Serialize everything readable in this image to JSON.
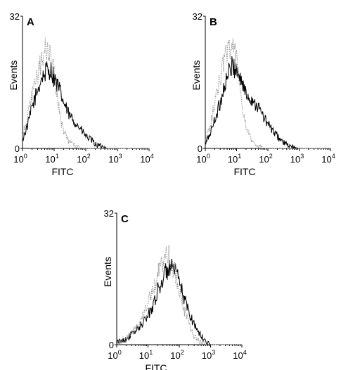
{
  "chart_data": [
    {
      "type": "line",
      "panel_label": "A",
      "xlabel": "FITC",
      "ylabel": "Events",
      "xscale": "log",
      "xlim": [
        1,
        10000
      ],
      "ylim": [
        0,
        32
      ],
      "x_ticks": [
        "0",
        "1",
        "2",
        "3",
        "4"
      ],
      "y_ticks": [
        "0",
        "32"
      ],
      "grid": false,
      "series": [
        {
          "style": "solid",
          "x": [
            1,
            1.5,
            2,
            3,
            4,
            5,
            6,
            8,
            10,
            15,
            20,
            30,
            50,
            80,
            100,
            150,
            200,
            300,
            500,
            1000,
            10000
          ],
          "y": [
            2,
            6,
            10,
            14,
            17,
            18,
            19,
            19,
            17,
            14,
            11,
            8,
            6,
            4,
            3,
            2,
            1,
            0.5,
            0,
            0,
            0
          ]
        },
        {
          "style": "dotted",
          "x": [
            1,
            1.5,
            2,
            3,
            4,
            5,
            6,
            8,
            10,
            13,
            15,
            20,
            30,
            50,
            80,
            100,
            10000
          ],
          "y": [
            3,
            8,
            13,
            18,
            21,
            24,
            24,
            22,
            18,
            12,
            8,
            4,
            1.5,
            0.5,
            0,
            0,
            0
          ]
        }
      ]
    },
    {
      "type": "line",
      "panel_label": "B",
      "xlabel": "FITC",
      "ylabel": "Events",
      "xscale": "log",
      "xlim": [
        1,
        10000
      ],
      "ylim": [
        0,
        32
      ],
      "x_ticks": [
        "0",
        "1",
        "2",
        "3",
        "4"
      ],
      "y_ticks": [
        "0",
        "32"
      ],
      "grid": false,
      "series": [
        {
          "style": "solid",
          "x": [
            1,
            1.5,
            2,
            3,
            4,
            5,
            6,
            8,
            10,
            15,
            20,
            30,
            50,
            80,
            100,
            150,
            200,
            300,
            500,
            1000,
            10000
          ],
          "y": [
            1,
            4,
            7,
            11,
            15,
            17,
            19,
            20,
            19,
            16,
            13,
            12,
            10,
            7,
            6,
            4,
            3,
            1.5,
            0.5,
            0,
            0
          ]
        },
        {
          "style": "dotted",
          "x": [
            1,
            1.5,
            2,
            3,
            4,
            5,
            6,
            8,
            10,
            13,
            15,
            20,
            30,
            50,
            80,
            100,
            10000
          ],
          "y": [
            2,
            6,
            11,
            17,
            21,
            24,
            25,
            24,
            21,
            15,
            10,
            5,
            2,
            0.5,
            0,
            0,
            0
          ]
        }
      ]
    },
    {
      "type": "line",
      "panel_label": "C",
      "xlabel": "FITC",
      "ylabel": "Events",
      "xscale": "log",
      "xlim": [
        1,
        10000
      ],
      "ylim": [
        0,
        32
      ],
      "x_ticks": [
        "0",
        "1",
        "2",
        "3",
        "4"
      ],
      "y_ticks": [
        "0",
        "32"
      ],
      "grid": false,
      "series": [
        {
          "style": "solid",
          "x": [
            1,
            2,
            3,
            5,
            8,
            10,
            15,
            20,
            30,
            40,
            50,
            80,
            100,
            150,
            200,
            300,
            500,
            800,
            1000,
            10000
          ],
          "y": [
            0.5,
            1.5,
            2.5,
            4,
            6,
            7,
            10,
            13,
            16,
            18,
            19,
            17,
            15,
            11,
            8,
            5,
            2,
            0.5,
            0,
            0
          ]
        },
        {
          "style": "dotted",
          "x": [
            1,
            2,
            3,
            5,
            8,
            10,
            15,
            20,
            30,
            40,
            50,
            80,
            100,
            150,
            200,
            300,
            500,
            1000,
            10000
          ],
          "y": [
            0.5,
            1.5,
            3,
            5,
            8,
            10,
            14,
            17,
            20,
            22,
            21,
            17,
            13,
            8,
            5,
            2,
            0.5,
            0,
            0
          ]
        }
      ]
    }
  ]
}
